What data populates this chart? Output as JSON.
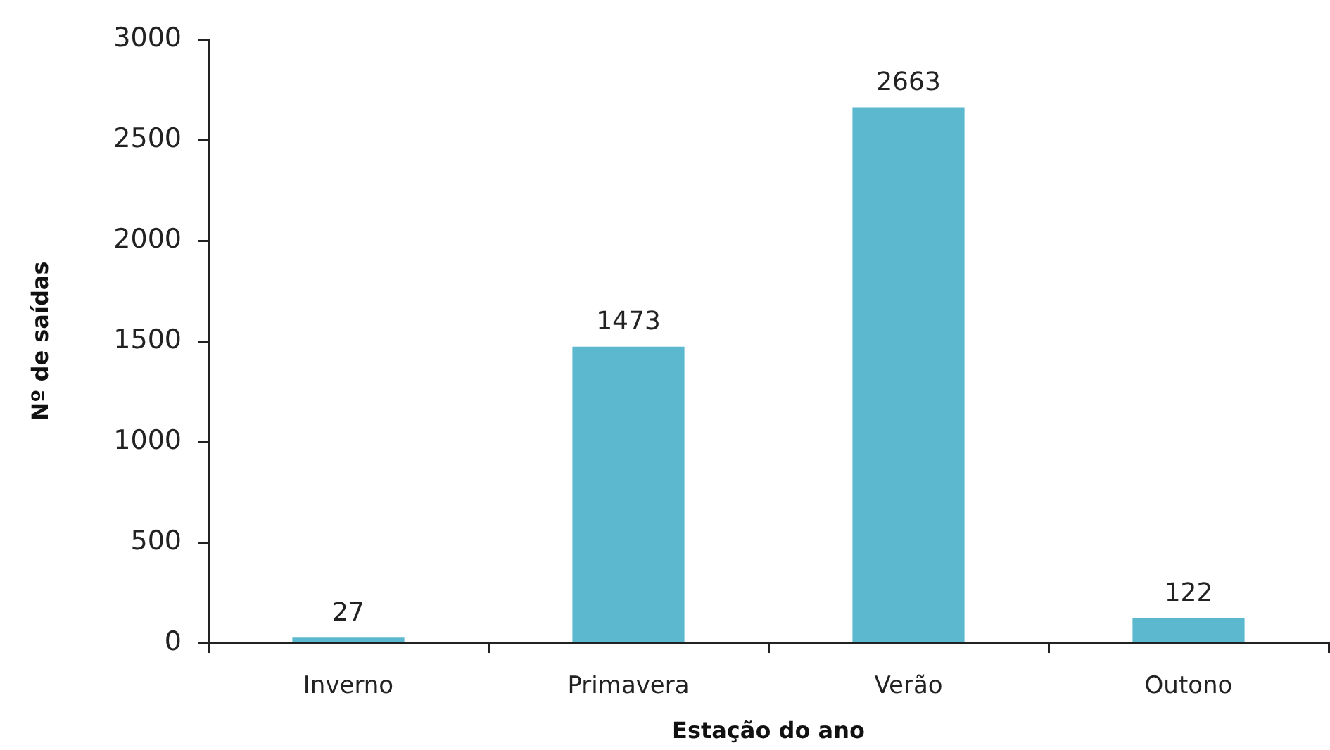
{
  "chart_data": {
    "type": "bar",
    "xlabel": "Estação do ano",
    "ylabel": "Nº de saídas",
    "categories": [
      "Inverno",
      "Primavera",
      "Verão",
      "Outono"
    ],
    "values": [
      27,
      1473,
      2663,
      122
    ],
    "color": "#5bb8ce",
    "ylim": [
      0,
      3000
    ],
    "yticks": [
      0,
      500,
      1000,
      1500,
      2000,
      2500,
      3000
    ],
    "data_labels": true
  }
}
